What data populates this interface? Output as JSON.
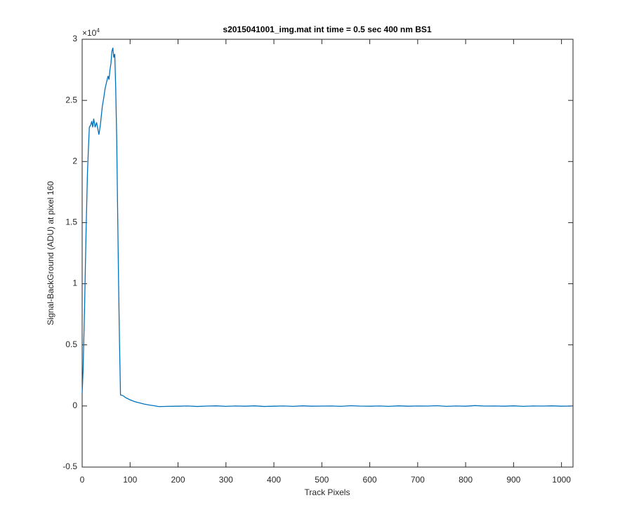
{
  "chart_data": {
    "type": "line",
    "title": "s2015041001_img.mat int time = 0.5 sec  400 nm BS1",
    "x_label": "Track Pixels",
    "y_label": "Signal-BackGround (ADU) at pixel 160",
    "y_exponent_label": {
      "base": "×10",
      "power": "4"
    },
    "x": [
      0,
      2,
      5,
      8,
      11,
      13,
      15,
      18,
      20,
      22,
      24,
      27,
      30,
      33,
      35,
      38,
      42,
      45,
      48,
      51,
      54,
      56,
      58,
      60,
      62,
      64,
      66,
      68,
      70,
      72,
      74,
      76,
      78,
      80,
      85,
      90,
      100,
      110,
      120,
      130,
      140,
      150,
      160,
      180,
      200,
      220,
      240,
      260,
      280,
      300,
      320,
      340,
      360,
      380,
      400,
      420,
      440,
      460,
      480,
      500,
      520,
      540,
      560,
      580,
      600,
      620,
      640,
      660,
      680,
      700,
      720,
      740,
      760,
      780,
      800,
      820,
      840,
      860,
      880,
      900,
      920,
      940,
      960,
      980,
      1000,
      1020
    ],
    "series": [
      {
        "color": "#0072bd",
        "values": [
          0.1,
          0.3,
          0.8,
          1.4,
          1.9,
          2.1,
          2.28,
          2.3,
          2.33,
          2.28,
          2.35,
          2.28,
          2.32,
          2.26,
          2.22,
          2.3,
          2.45,
          2.52,
          2.6,
          2.65,
          2.7,
          2.67,
          2.75,
          2.8,
          2.9,
          2.93,
          2.85,
          2.88,
          2.6,
          2.2,
          1.6,
          1.0,
          0.5,
          0.09,
          0.085,
          0.07,
          0.05,
          0.035,
          0.025,
          0.015,
          0.008,
          0.002,
          -0.005,
          -0.003,
          -0.002,
          0.0,
          -0.004,
          -0.001,
          0.001,
          -0.003,
          0.0,
          -0.002,
          0.001,
          -0.004,
          -0.002,
          0.0,
          -0.003,
          0.001,
          -0.002,
          -0.001,
          0.0,
          -0.003,
          0.002,
          -0.001,
          -0.002,
          0.0,
          -0.003,
          0.001,
          -0.002,
          0.0,
          -0.001,
          0.002,
          -0.003,
          0.0,
          -0.002,
          0.003,
          -0.001,
          0.0,
          -0.002,
          0.001,
          -0.003,
          0.0,
          -0.001,
          0.001,
          -0.002,
          -0.001
        ]
      }
    ],
    "xlim": [
      0,
      1024
    ],
    "xticks": [
      0,
      100,
      200,
      300,
      400,
      500,
      600,
      700,
      800,
      900,
      1000
    ],
    "ylim": [
      -0.5,
      3
    ],
    "yticks": [
      -0.5,
      0,
      0.5,
      1,
      1.5,
      2,
      2.5,
      3
    ],
    "grid": false
  }
}
